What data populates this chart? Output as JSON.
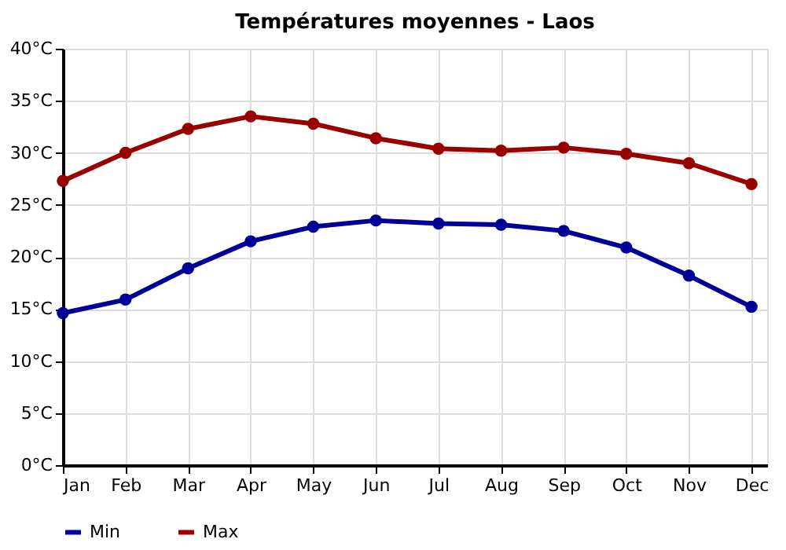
{
  "chart_data": {
    "type": "line",
    "title": "Températures moyennes - Laos",
    "categories": [
      "Jan",
      "Feb",
      "Mar",
      "Apr",
      "May",
      "Jun",
      "Jul",
      "Aug",
      "Sep",
      "Oct",
      "Nov",
      "Dec"
    ],
    "series": [
      {
        "name": "Min",
        "color": "#000099",
        "values": [
          14.6,
          15.9,
          18.9,
          21.5,
          22.9,
          23.5,
          23.2,
          23.1,
          22.5,
          20.9,
          18.2,
          15.2
        ]
      },
      {
        "name": "Max",
        "color": "#990000",
        "values": [
          27.3,
          30.0,
          32.3,
          33.5,
          32.8,
          31.4,
          30.4,
          30.2,
          30.5,
          29.9,
          29.0,
          27.0
        ]
      }
    ],
    "ylim": [
      0,
      40
    ],
    "yticks": [
      {
        "value": 0,
        "label": "0°C"
      },
      {
        "value": 5,
        "label": "5°C"
      },
      {
        "value": 10,
        "label": "10°C"
      },
      {
        "value": 15,
        "label": "15°C"
      },
      {
        "value": 20,
        "label": "20°C"
      },
      {
        "value": 25,
        "label": "25°C"
      },
      {
        "value": 30,
        "label": "30°C"
      },
      {
        "value": 35,
        "label": "35°C"
      },
      {
        "value": 40,
        "label": "40°C"
      }
    ],
    "grid": true,
    "legend": "bottom left",
    "marker": "circle",
    "line_style": "solid"
  }
}
